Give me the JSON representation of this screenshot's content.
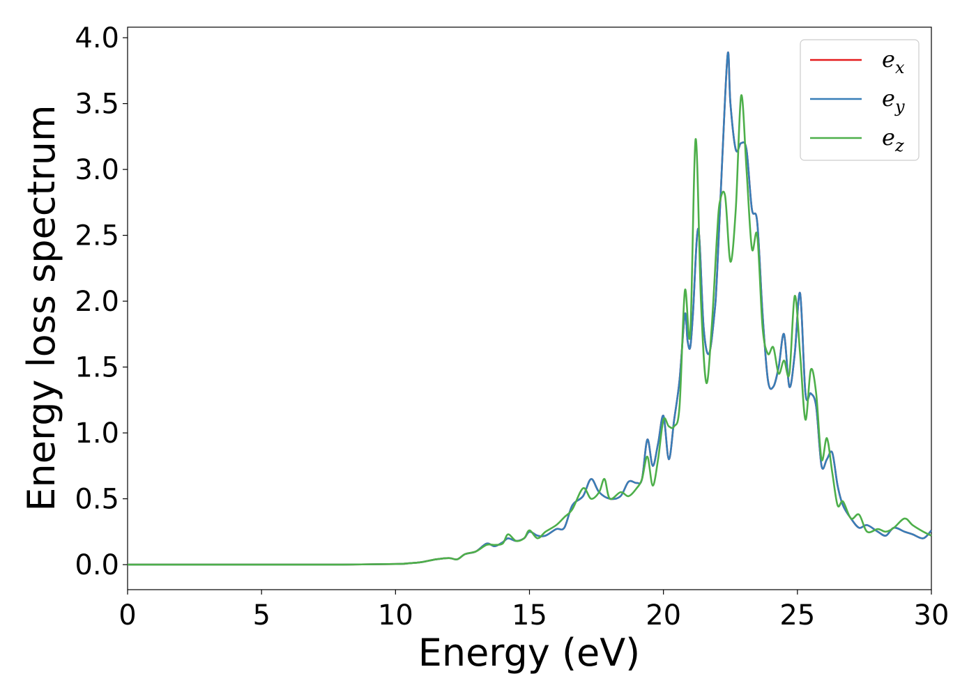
{
  "chart_data": {
    "type": "line",
    "xlabel": "Energy (eV)",
    "ylabel": "Energy loss spectrum",
    "xlim": [
      0,
      30
    ],
    "ylim": [
      -0.19,
      4.08
    ],
    "x_ticks": [
      "0",
      "5",
      "10",
      "15",
      "20",
      "25",
      "30"
    ],
    "y_ticks": [
      "0.0",
      "0.5",
      "1.0",
      "1.5",
      "2.0",
      "2.5",
      "3.0",
      "3.5",
      "4.0"
    ],
    "grid": false,
    "legend_position": "top-right",
    "series": [
      {
        "name": "e_x",
        "legend_main": "e",
        "legend_sub": "x",
        "color": "#e41a1c",
        "x": [
          0,
          5,
          8,
          10,
          10.5,
          11,
          11.5,
          12,
          12.3,
          12.6,
          13,
          13.4,
          13.7,
          14,
          14.2,
          14.5,
          14.8,
          15,
          15.3,
          15.6,
          16,
          16.3,
          16.6,
          17,
          17.3,
          17.6,
          18,
          18.4,
          18.7,
          19,
          19.2,
          19.4,
          19.6,
          19.8,
          20,
          20.2,
          20.4,
          20.6,
          20.8,
          20.9,
          21,
          21.1,
          21.3,
          21.5,
          21.7,
          21.9,
          22,
          22.2,
          22.4,
          22.5,
          22.7,
          22.9,
          23.1,
          23.3,
          23.5,
          23.7,
          23.9,
          24.1,
          24.3,
          24.5,
          24.7,
          24.9,
          25.1,
          25.3,
          25.5,
          25.7,
          25.9,
          26.1,
          26.3,
          26.5,
          26.7,
          27,
          27.3,
          27.6,
          28,
          28.3,
          28.6,
          29,
          29.3,
          29.7,
          30
        ],
        "values": [
          0,
          0,
          0,
          0.005,
          0.01,
          0.02,
          0.04,
          0.05,
          0.04,
          0.08,
          0.1,
          0.16,
          0.14,
          0.17,
          0.2,
          0.18,
          0.2,
          0.25,
          0.22,
          0.22,
          0.27,
          0.28,
          0.45,
          0.52,
          0.65,
          0.55,
          0.5,
          0.52,
          0.63,
          0.62,
          0.65,
          0.95,
          0.75,
          0.92,
          1.13,
          0.8,
          1.1,
          1.4,
          1.9,
          1.7,
          1.65,
          1.9,
          2.55,
          1.8,
          1.6,
          1.9,
          2.2,
          3.1,
          3.88,
          3.5,
          3.15,
          3.2,
          3.15,
          2.7,
          2.6,
          1.9,
          1.4,
          1.35,
          1.5,
          1.75,
          1.35,
          1.6,
          2.06,
          1.3,
          1.3,
          1.2,
          0.75,
          0.8,
          0.85,
          0.6,
          0.45,
          0.35,
          0.28,
          0.3,
          0.25,
          0.22,
          0.28,
          0.25,
          0.23,
          0.2,
          0.26
        ]
      },
      {
        "name": "e_y",
        "legend_main": "e",
        "legend_sub": "y",
        "color": "#377eb8",
        "x": [
          0,
          5,
          8,
          10,
          10.5,
          11,
          11.5,
          12,
          12.3,
          12.6,
          13,
          13.4,
          13.7,
          14,
          14.2,
          14.5,
          14.8,
          15,
          15.3,
          15.6,
          16,
          16.3,
          16.6,
          17,
          17.3,
          17.6,
          18,
          18.4,
          18.7,
          19,
          19.2,
          19.4,
          19.6,
          19.8,
          20,
          20.2,
          20.4,
          20.6,
          20.8,
          20.9,
          21,
          21.1,
          21.3,
          21.5,
          21.7,
          21.9,
          22,
          22.2,
          22.4,
          22.5,
          22.7,
          22.9,
          23.1,
          23.3,
          23.5,
          23.7,
          23.9,
          24.1,
          24.3,
          24.5,
          24.7,
          24.9,
          25.1,
          25.3,
          25.5,
          25.7,
          25.9,
          26.1,
          26.3,
          26.5,
          26.7,
          27,
          27.3,
          27.6,
          28,
          28.3,
          28.6,
          29,
          29.3,
          29.7,
          30
        ],
        "values": [
          0,
          0,
          0,
          0.005,
          0.01,
          0.02,
          0.04,
          0.05,
          0.04,
          0.08,
          0.1,
          0.16,
          0.14,
          0.17,
          0.2,
          0.18,
          0.2,
          0.25,
          0.22,
          0.22,
          0.27,
          0.28,
          0.45,
          0.52,
          0.65,
          0.55,
          0.5,
          0.52,
          0.63,
          0.62,
          0.65,
          0.95,
          0.75,
          0.92,
          1.13,
          0.8,
          1.1,
          1.4,
          1.9,
          1.7,
          1.65,
          1.9,
          2.55,
          1.8,
          1.6,
          1.9,
          2.2,
          3.1,
          3.88,
          3.5,
          3.15,
          3.2,
          3.15,
          2.7,
          2.6,
          1.9,
          1.4,
          1.35,
          1.5,
          1.75,
          1.35,
          1.6,
          2.06,
          1.3,
          1.3,
          1.2,
          0.75,
          0.8,
          0.85,
          0.6,
          0.45,
          0.35,
          0.28,
          0.3,
          0.25,
          0.22,
          0.28,
          0.25,
          0.23,
          0.2,
          0.26
        ]
      },
      {
        "name": "e_z",
        "legend_main": "e",
        "legend_sub": "z",
        "color": "#4daf4a",
        "x": [
          0,
          5,
          8,
          10,
          10.5,
          11,
          11.5,
          12,
          12.3,
          12.6,
          13,
          13.4,
          13.7,
          14,
          14.2,
          14.5,
          14.8,
          15,
          15.3,
          15.6,
          16,
          16.3,
          16.6,
          17,
          17.3,
          17.6,
          17.8,
          18,
          18.4,
          18.7,
          19,
          19.2,
          19.4,
          19.6,
          19.8,
          20,
          20.2,
          20.4,
          20.6,
          20.8,
          21,
          21.2,
          21.4,
          21.6,
          21.8,
          22,
          22.1,
          22.3,
          22.5,
          22.7,
          22.9,
          23.1,
          23.3,
          23.5,
          23.7,
          23.9,
          24.1,
          24.3,
          24.5,
          24.7,
          24.9,
          25.1,
          25.3,
          25.5,
          25.7,
          25.9,
          26.1,
          26.3,
          26.5,
          26.7,
          27,
          27.3,
          27.6,
          28,
          28.3,
          28.6,
          29,
          29.3,
          29.7,
          30
        ],
        "values": [
          0,
          0,
          0,
          0.005,
          0.01,
          0.02,
          0.04,
          0.05,
          0.04,
          0.08,
          0.1,
          0.15,
          0.15,
          0.16,
          0.23,
          0.18,
          0.2,
          0.26,
          0.2,
          0.25,
          0.3,
          0.36,
          0.42,
          0.58,
          0.5,
          0.55,
          0.65,
          0.5,
          0.55,
          0.52,
          0.58,
          0.65,
          0.82,
          0.6,
          0.8,
          1.1,
          1.05,
          1.05,
          1.2,
          2.08,
          1.75,
          3.23,
          2.0,
          1.38,
          1.8,
          2.5,
          2.75,
          2.8,
          2.3,
          2.7,
          3.56,
          3.0,
          2.4,
          2.5,
          1.8,
          1.6,
          1.65,
          1.45,
          1.55,
          1.45,
          2.04,
          1.6,
          1.1,
          1.48,
          1.3,
          0.8,
          0.96,
          0.7,
          0.45,
          0.48,
          0.35,
          0.38,
          0.25,
          0.27,
          0.25,
          0.28,
          0.35,
          0.3,
          0.25,
          0.22
        ]
      }
    ]
  }
}
